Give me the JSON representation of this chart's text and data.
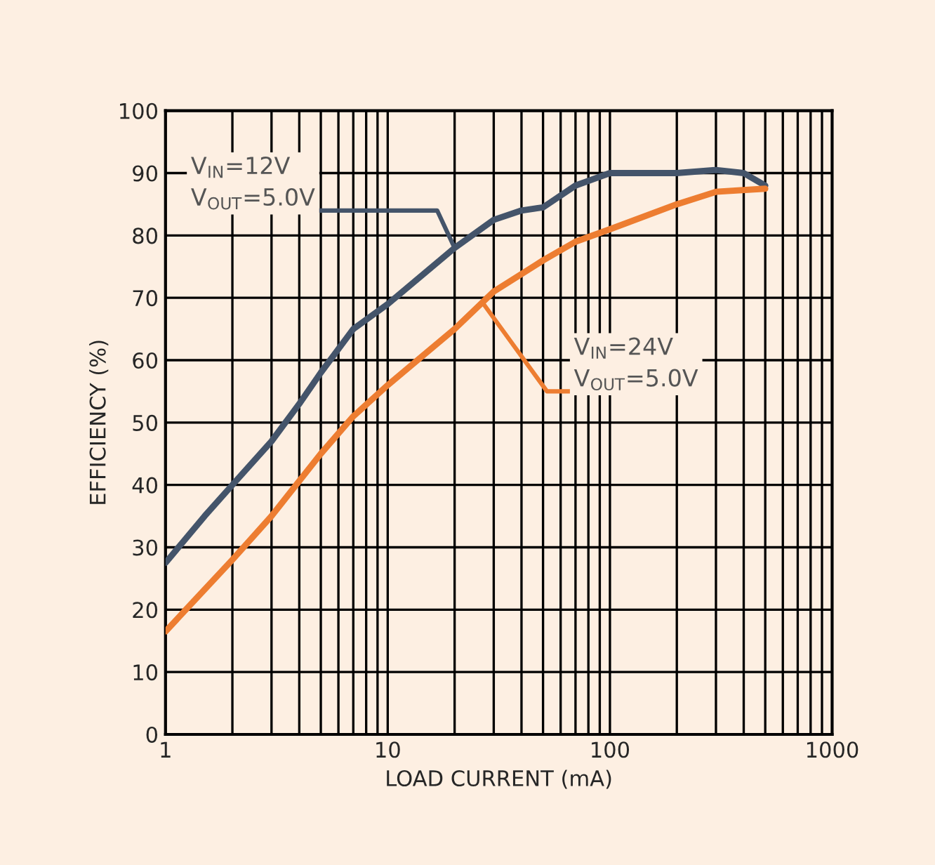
{
  "chart_data": {
    "type": "line",
    "xlabel": "LOAD CURRENT (mA)",
    "ylabel": "EFFICIENCY (%)",
    "log": "x",
    "xlim": [
      1,
      1000
    ],
    "xticks": [
      1,
      10,
      100,
      1000
    ],
    "ylim": [
      0,
      100
    ],
    "yticks": [
      0,
      10,
      20,
      30,
      40,
      50,
      60,
      70,
      80,
      90,
      100
    ],
    "grid": true,
    "legend": false,
    "marker": "none",
    "line_style": "solid",
    "annotations": [
      {
        "text": "V$_{IN}$=12V\nV$_{OUT}$=5.0V",
        "x": 20,
        "y": 78
      },
      {
        "text": "V$_{IN}$=24V\nV$_{OUT}$=5.0V",
        "x": 27,
        "y": 69
      }
    ],
    "series": [
      {
        "color": "#44546a",
        "x": [
          1,
          1.5,
          2,
          3,
          4,
          5,
          7,
          10,
          20,
          30,
          40,
          50,
          70,
          100,
          200,
          300,
          400,
          500
        ],
        "values": [
          27.5,
          35,
          40,
          47,
          53,
          58,
          65,
          69,
          78,
          82.5,
          84,
          84.5,
          88,
          90,
          90,
          90.5,
          90,
          88
        ]
      },
      {
        "color": "#ed7d31",
        "x": [
          1,
          2,
          3,
          5,
          7,
          10,
          20,
          30,
          50,
          70,
          100,
          200,
          300,
          500
        ],
        "values": [
          16.5,
          28,
          35,
          45,
          51,
          56,
          65,
          71,
          76,
          79,
          81,
          85,
          87,
          87.5
        ]
      }
    ]
  }
}
